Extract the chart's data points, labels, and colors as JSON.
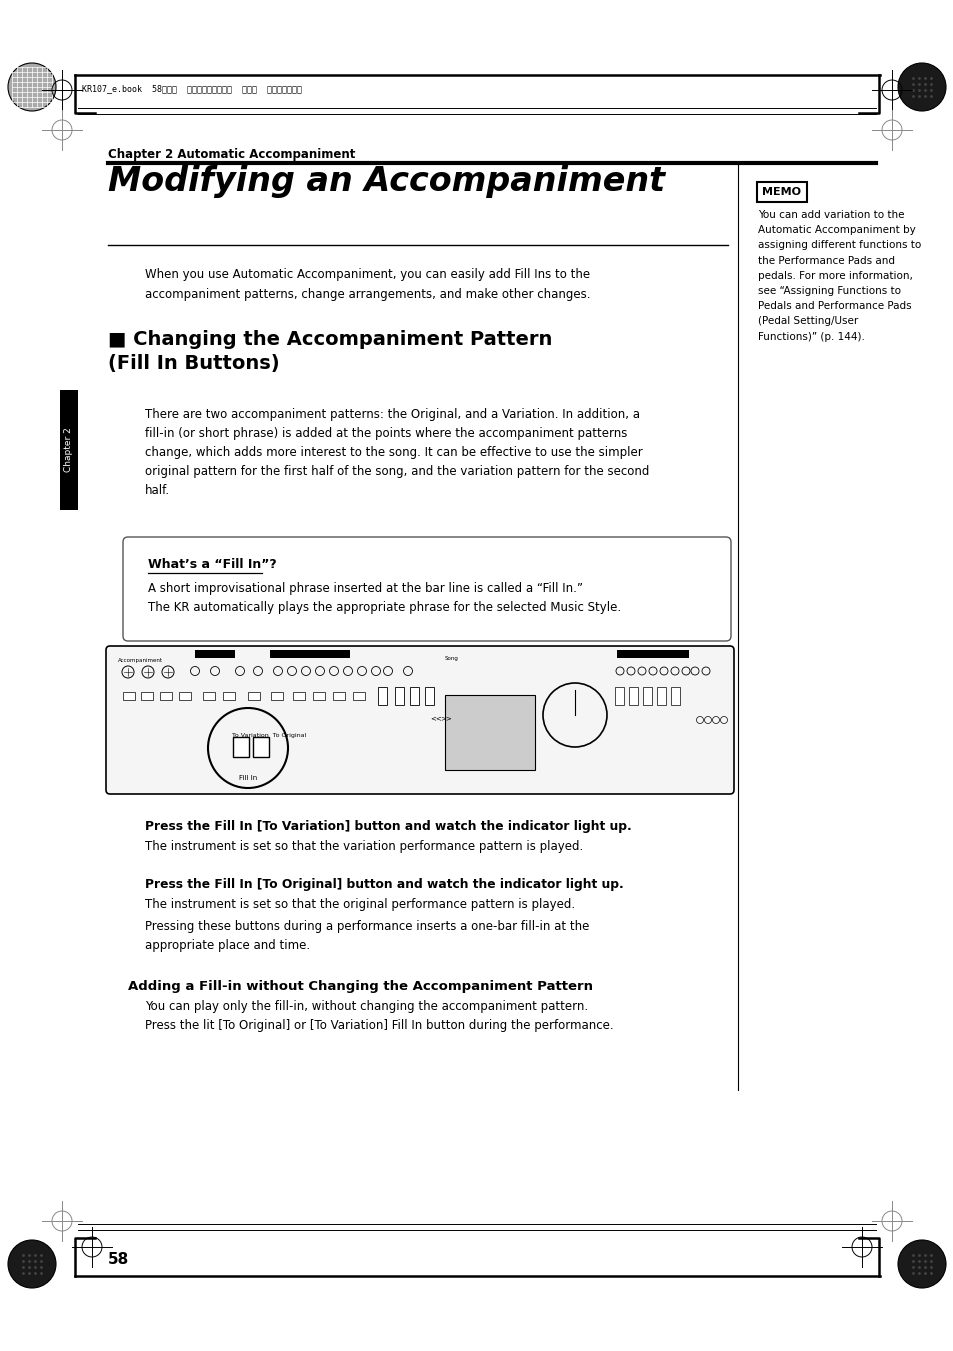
{
  "bg_color": "#ffffff",
  "header_japanese": "KR107_e.book  58ページ  ２００５年８月３日  水曜日  午前９時３６分",
  "chapter_label": "Chapter 2 Automatic Accompaniment",
  "title": "Modifying an Accompaniment",
  "intro_text": "When you use Automatic Accompaniment, you can easily add Fill Ins to the\naccompaniment patterns, change arrangements, and make other changes.",
  "section_title": "■ Changing the Accompaniment Pattern\n(Fill In Buttons)",
  "body_text1": "There are two accompaniment patterns: the Original, and a Variation. In addition, a\nfill-in (or short phrase) is added at the points where the accompaniment patterns\nchange, which adds more interest to the song. It can be effective to use the simpler\noriginal pattern for the first half of the song, and the variation pattern for the second\nhalf.",
  "memo_text": "You can add variation to the\nAutomatic Accompaniment by\nassigning different functions to\nthe Performance Pads and\npedals. For more information,\nsee “Assigning Functions to\nPedals and Performance Pads\n(Pedal Setting/User\nFunctions)” (p. 144).",
  "box_title": "What’s a “Fill In”?",
  "box_text": "A short improvisational phrase inserted at the bar line is called a “Fill In.”\nThe KR automatically plays the appropriate phrase for the selected Music Style.",
  "step1_bold": "Press the Fill In [To Variation] button and watch the indicator light up.",
  "step1_text": "The instrument is set so that the variation performance pattern is played.",
  "step2_bold": "Press the Fill In [To Original] button and watch the indicator light up.",
  "step2_text1": "The instrument is set so that the original performance pattern is played.",
  "step2_text2": "Pressing these buttons during a performance inserts a one-bar fill-in at the\nappropriate place and time.",
  "subsection_title": "Adding a Fill-in without Changing the Accompaniment Pattern",
  "subsection_text": "You can play only the fill-in, without changing the accompaniment pattern.\nPress the lit [To Original] or [To Variation] Fill In button during the performance.",
  "page_number": "58",
  "chapter_tab": "Chapter 2"
}
